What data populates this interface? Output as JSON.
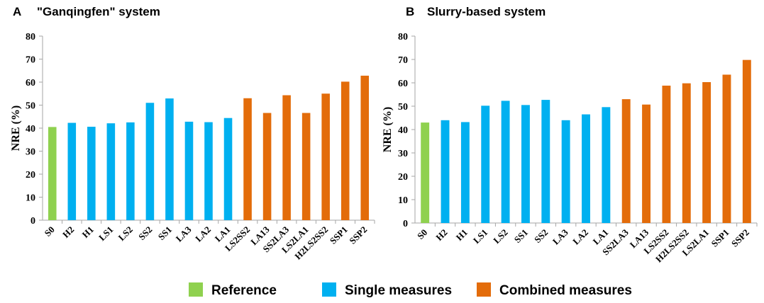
{
  "colors": {
    "reference": "#8fd14f",
    "single": "#00b0f0",
    "combined": "#e36c0a",
    "axis": "#a6a6a6"
  },
  "legend": [
    {
      "key": "reference",
      "label": "Reference"
    },
    {
      "key": "single",
      "label": "Single measures"
    },
    {
      "key": "combined",
      "label": "Combined measures"
    }
  ],
  "chart_data": [
    {
      "type": "bar",
      "panel": "A",
      "title": "\"Ganqingfen\" system",
      "xlabel": "",
      "ylabel": "NRE (%)",
      "ylim": [
        0,
        80
      ],
      "yticks": [
        0,
        10,
        20,
        30,
        40,
        50,
        60,
        70,
        80
      ],
      "categories": [
        "S0",
        "H2",
        "H1",
        "LS1",
        "LS2",
        "SS2",
        "SS1",
        "LA3",
        "LA2",
        "LA1",
        "LS2SS2",
        "LA13",
        "SS2LA3",
        "LS2LA1",
        "H2LS2SS2",
        "SSP1",
        "SSP2"
      ],
      "values": [
        40.5,
        42.3,
        40.6,
        42.1,
        42.5,
        51.0,
        52.9,
        42.8,
        42.6,
        44.4,
        53.0,
        46.6,
        54.3,
        46.6,
        55.0,
        60.2,
        62.8
      ],
      "groups": [
        "reference",
        "single",
        "single",
        "single",
        "single",
        "single",
        "single",
        "single",
        "single",
        "single",
        "combined",
        "combined",
        "combined",
        "combined",
        "combined",
        "combined",
        "combined"
      ]
    },
    {
      "type": "bar",
      "panel": "B",
      "title": "Slurry-based system",
      "xlabel": "",
      "ylabel": "NRE (%)",
      "ylim": [
        0,
        80
      ],
      "yticks": [
        0,
        10,
        20,
        30,
        40,
        50,
        60,
        70,
        80
      ],
      "categories": [
        "S0",
        "H2",
        "H1",
        "LS1",
        "LS2",
        "SS1",
        "SS2",
        "LA3",
        "LA2",
        "LA1",
        "SS2LA3",
        "LA13",
        "LS2SS2",
        "H2LS2SS2",
        "LS2LA1",
        "SSP1",
        "SSP2"
      ],
      "values": [
        43.0,
        44.0,
        43.2,
        50.2,
        52.3,
        50.5,
        52.7,
        44.0,
        46.5,
        49.6,
        53.0,
        50.7,
        58.8,
        59.8,
        60.3,
        63.5,
        69.8
      ],
      "groups": [
        "reference",
        "single",
        "single",
        "single",
        "single",
        "single",
        "single",
        "single",
        "single",
        "single",
        "combined",
        "combined",
        "combined",
        "combined",
        "combined",
        "combined",
        "combined"
      ]
    }
  ]
}
